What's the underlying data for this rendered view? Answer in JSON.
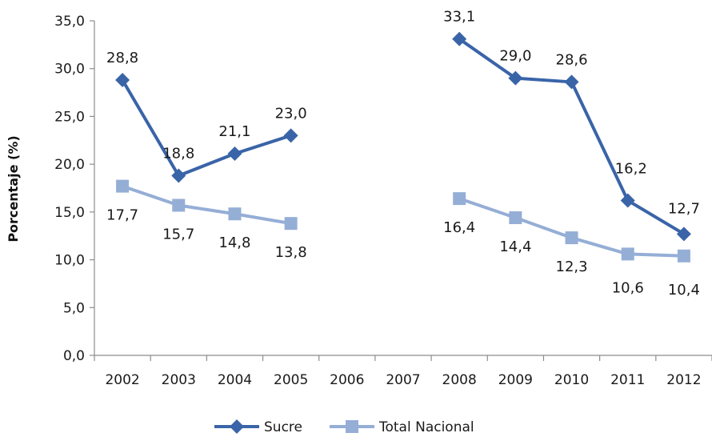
{
  "chart_data": {
    "type": "line",
    "title": "",
    "xlabel": "",
    "ylabel": "Porcentaje (%)",
    "ylim": [
      0,
      35
    ],
    "y_ticks": [
      "0,0",
      "5,0",
      "10,0",
      "15,0",
      "20,0",
      "25,0",
      "30,0",
      "35,0"
    ],
    "categories": [
      "2002",
      "2003",
      "2004",
      "2005",
      "2006",
      "2007",
      "2008",
      "2009",
      "2010",
      "2011",
      "2012"
    ],
    "grid": false,
    "legend_position": "bottom",
    "series": [
      {
        "name": "Sucre",
        "color": "#3a64a8",
        "marker": "diamond",
        "values": [
          28.8,
          18.8,
          21.1,
          23.0,
          null,
          null,
          33.1,
          29.0,
          28.6,
          16.2,
          12.7
        ],
        "labels": [
          "28,8",
          "18,8",
          "21,1",
          "23,0",
          "",
          "",
          "33,1",
          "29,0",
          "28,6",
          "16,2",
          "12,7"
        ]
      },
      {
        "name": "Total Nacional",
        "color": "#95aed6",
        "marker": "square",
        "values": [
          17.7,
          15.7,
          14.8,
          13.8,
          null,
          null,
          16.4,
          14.4,
          12.3,
          10.6,
          10.4
        ],
        "labels": [
          "17,7",
          "15,7",
          "14,8",
          "13,8",
          "",
          "",
          "16,4",
          "14,4",
          "12,3",
          "10,6",
          "10,4"
        ]
      }
    ]
  }
}
